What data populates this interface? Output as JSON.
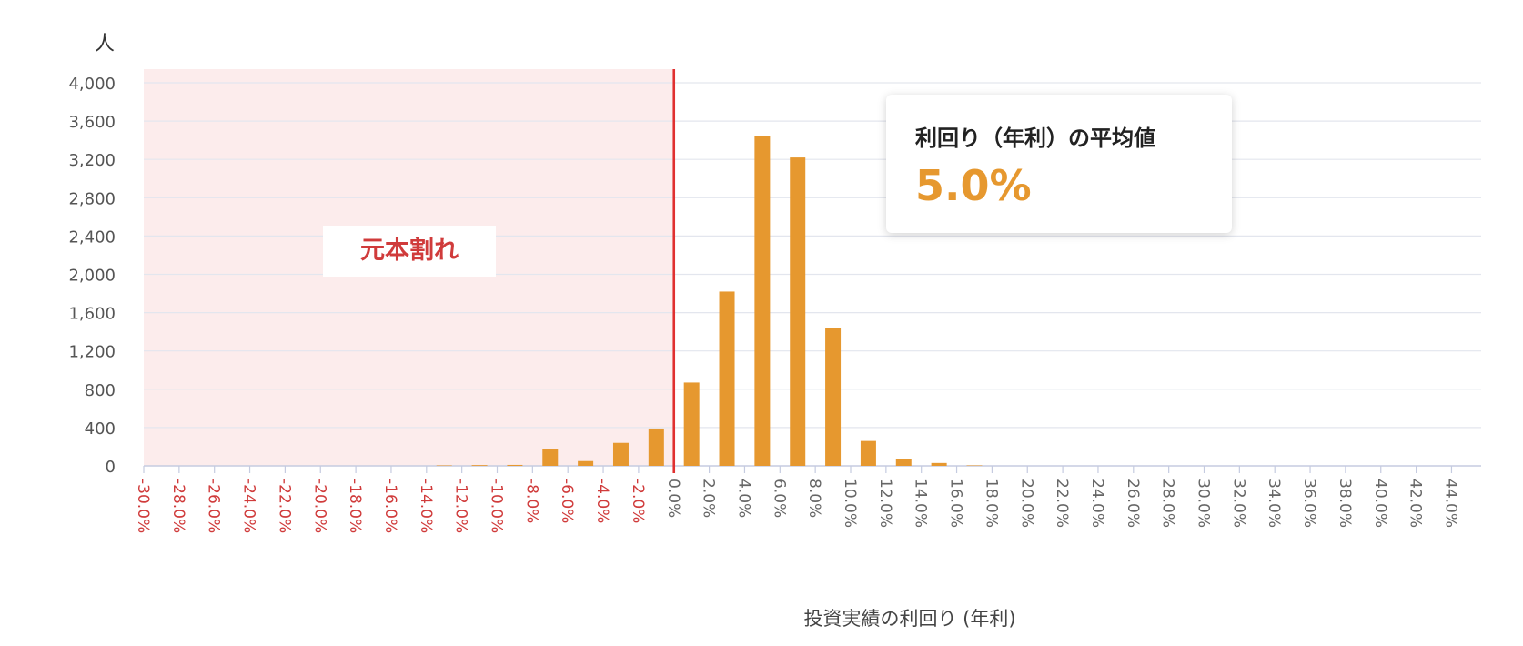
{
  "chart_data": {
    "type": "bar",
    "y_unit_label": "人",
    "xlabel": "投資実績の利回り (年利)",
    "ylim": [
      0,
      4000
    ],
    "y_ticks": [
      "0",
      "400",
      "800",
      "1,200",
      "1,600",
      "2,000",
      "2,400",
      "2,800",
      "3,200",
      "3,600",
      "4,000"
    ],
    "x_ticks": [
      "-30.0%",
      "-28.0%",
      "-26.0%",
      "-24.0%",
      "-22.0%",
      "-20.0%",
      "-18.0%",
      "-16.0%",
      "-14.0%",
      "-12.0%",
      "-10.0%",
      "-8.0%",
      "-6.0%",
      "-4.0%",
      "-2.0%",
      "0.0%",
      "2.0%",
      "4.0%",
      "6.0%",
      "8.0%",
      "10.0%",
      "12.0%",
      "14.0%",
      "16.0%",
      "18.0%",
      "20.0%",
      "22.0%",
      "24.0%",
      "26.0%",
      "28.0%",
      "30.0%",
      "32.0%",
      "34.0%",
      "36.0%",
      "38.0%",
      "40.0%",
      "42.0%",
      "44.0%"
    ],
    "categories": [
      "-30.0%",
      "-28.0%",
      "-26.0%",
      "-24.0%",
      "-22.0%",
      "-20.0%",
      "-18.0%",
      "-16.0%",
      "-14.0%",
      "-12.0%",
      "-10.0%",
      "-8.0%",
      "-6.0%",
      "-4.0%",
      "-2.0%",
      "0.0%",
      "2.0%",
      "4.0%",
      "6.0%",
      "8.0%",
      "10.0%",
      "12.0%",
      "14.0%",
      "16.0%",
      "18.0%",
      "20.0%",
      "22.0%",
      "24.0%",
      "26.0%",
      "28.0%",
      "30.0%",
      "32.0%",
      "34.0%",
      "36.0%",
      "38.0%",
      "40.0%",
      "42.0%",
      "44.0%"
    ],
    "values": [
      0,
      0,
      0,
      0,
      0,
      0,
      0,
      0,
      5,
      8,
      10,
      180,
      50,
      240,
      390,
      870,
      1820,
      3440,
      3220,
      1440,
      260,
      70,
      30,
      5,
      0,
      0,
      0,
      0,
      0,
      0,
      0,
      0,
      0,
      0,
      0,
      0,
      0,
      0
    ],
    "negative_region": {
      "label": "元本割れ",
      "x_end": "0.0%"
    },
    "average_annotation": {
      "title": "利回り（年利）の平均値",
      "value": "5.0%"
    },
    "grid": true,
    "colors": {
      "bar": "#e6982f",
      "negative_region": "#fcecec",
      "zero_line": "#e03030",
      "negative_tick_label": "#d03b3b",
      "positive_tick_label": "#666666",
      "grid": "#e3e6ee",
      "axis": "#c5cbe0"
    }
  }
}
